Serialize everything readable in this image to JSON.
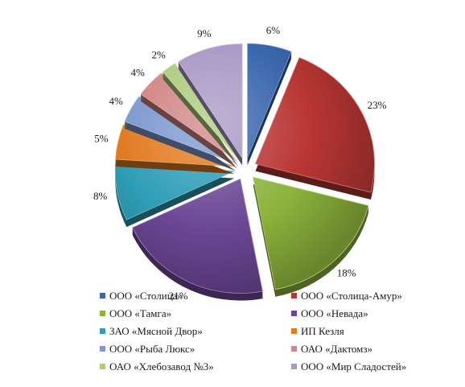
{
  "chart_data": {
    "type": "pie",
    "style": "3d-exploded",
    "legend_position": "bottom",
    "slices": [
      {
        "label": "ООО «Столица»",
        "value": 6,
        "value_label": "6%",
        "color": "#3a66ad"
      },
      {
        "label": "ООО «Столица-Амур»",
        "value": 23,
        "value_label": "23%",
        "color": "#b93634"
      },
      {
        "label": "ООО «Тамга»",
        "value": 18,
        "value_label": "18%",
        "color": "#8db33c"
      },
      {
        "label": "ООО «Невада»",
        "value": 21,
        "value_label": "21%",
        "color": "#6b4795"
      },
      {
        "label": "ЗАО «Мясной Двор»",
        "value": 8,
        "value_label": "8%",
        "color": "#2f9eb7"
      },
      {
        "label": "ИП Кезля",
        "value": 5,
        "value_label": "5%",
        "color": "#e27b22"
      },
      {
        "label": "ООО «Рыба Люкс»",
        "value": 4,
        "value_label": "4%",
        "color": "#7d99cf"
      },
      {
        "label": "ОАО «Дактомз»",
        "value": 4,
        "value_label": "4%",
        "color": "#d28686"
      },
      {
        "label": "ОАО «Хлебозавод №3»",
        "value": 2,
        "value_label": "2%",
        "color": "#aecb7e"
      },
      {
        "label": "ООО «Мир Сладостей»",
        "value": 9,
        "value_label": "9%",
        "color": "#a999c5"
      }
    ]
  }
}
